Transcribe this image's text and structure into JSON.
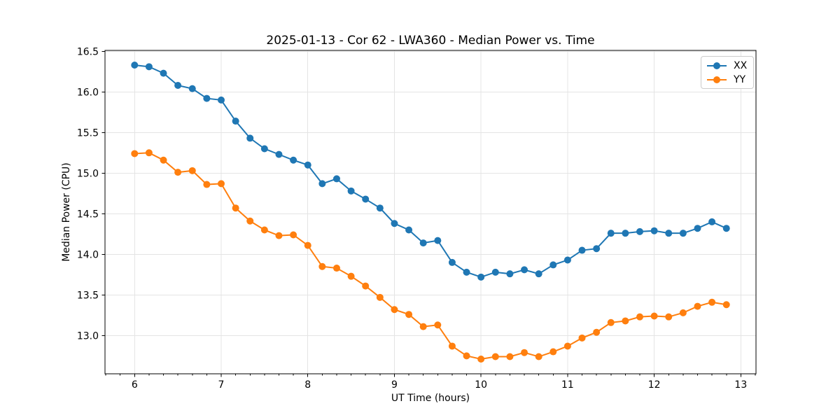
{
  "chart_data": {
    "type": "line",
    "title": "2025-01-13 - Cor 62 - LWA360 - Median Power vs. Time",
    "xlabel": "UT Time (hours)",
    "ylabel": "Median Power (CPU)",
    "x": [
      6.0,
      6.1667,
      6.3333,
      6.5,
      6.6667,
      6.8333,
      7.0,
      7.1667,
      7.3333,
      7.5,
      7.6667,
      7.8333,
      8.0,
      8.1667,
      8.3333,
      8.5,
      8.6667,
      8.8333,
      9.0,
      9.1667,
      9.3333,
      9.5,
      9.6667,
      9.8333,
      10.0,
      10.1667,
      10.3333,
      10.5,
      10.6667,
      10.8333,
      11.0,
      11.1667,
      11.3333,
      11.5,
      11.6667,
      11.8333,
      12.0,
      12.1667,
      12.3333,
      12.5,
      12.6667,
      12.8333
    ],
    "series": [
      {
        "name": "XX",
        "color": "#1f77b4",
        "values": [
          16.33,
          16.31,
          16.23,
          16.08,
          16.04,
          15.92,
          15.9,
          15.64,
          15.43,
          15.3,
          15.23,
          15.16,
          15.1,
          14.87,
          14.93,
          14.78,
          14.68,
          14.57,
          14.38,
          14.3,
          14.14,
          14.17,
          13.9,
          13.78,
          13.72,
          13.78,
          13.76,
          13.81,
          13.76,
          13.87,
          13.93,
          14.05,
          14.07,
          14.26,
          14.26,
          14.28,
          14.29,
          14.26,
          14.26,
          14.32,
          14.4,
          14.32
        ]
      },
      {
        "name": "YY",
        "color": "#ff7f0e",
        "values": [
          15.24,
          15.25,
          15.16,
          15.01,
          15.03,
          14.86,
          14.87,
          14.57,
          14.41,
          14.3,
          14.23,
          14.24,
          14.11,
          13.85,
          13.83,
          13.73,
          13.61,
          13.47,
          13.32,
          13.26,
          13.11,
          13.13,
          12.87,
          12.75,
          12.71,
          12.74,
          12.74,
          12.79,
          12.74,
          12.8,
          12.87,
          12.97,
          13.04,
          13.16,
          13.18,
          13.23,
          13.24,
          13.23,
          13.28,
          13.36,
          13.41,
          13.38
        ]
      }
    ],
    "xlim": [
      5.6583,
      13.175
    ],
    "ylim": [
      12.529,
      16.511
    ],
    "x_major_ticks": [
      6,
      7,
      8,
      9,
      10,
      11,
      12,
      13
    ],
    "x_minor_tick_step": 0.16667,
    "y_major_ticks": [
      13.0,
      13.5,
      14.0,
      14.5,
      15.0,
      15.5,
      16.0,
      16.5
    ],
    "grid": true,
    "legend_position": "upper right",
    "colors": {
      "grid": "#e4e4e4",
      "spine": "#000000",
      "background": "#ffffff"
    }
  }
}
